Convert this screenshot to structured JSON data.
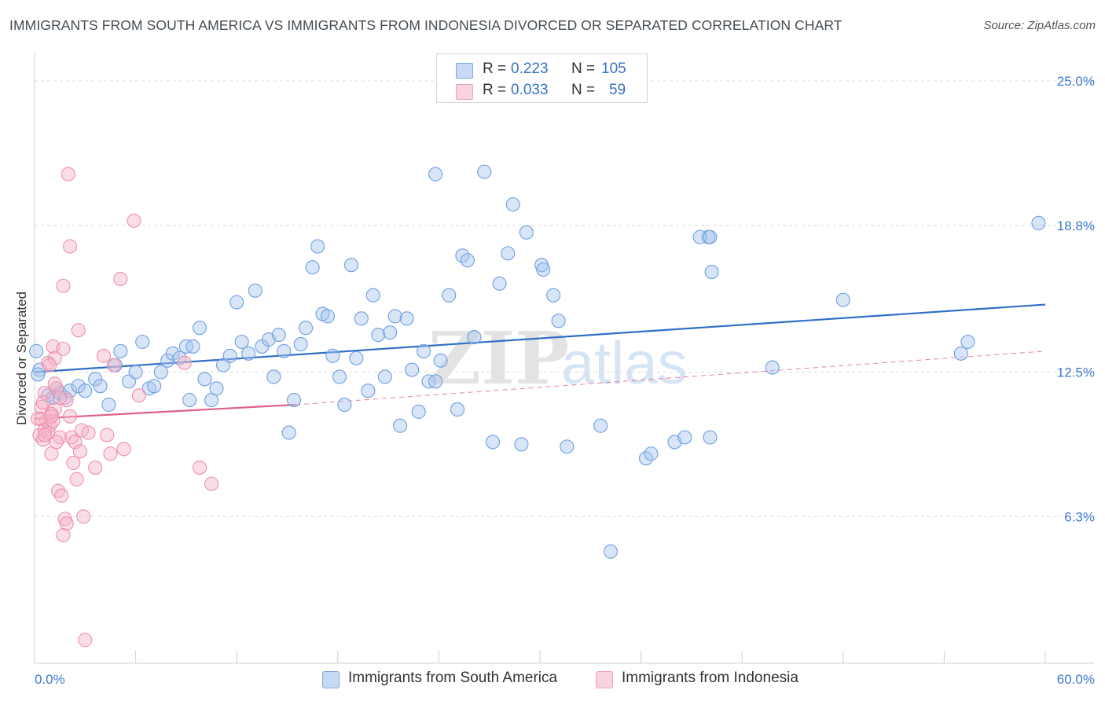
{
  "title": "IMMIGRANTS FROM SOUTH AMERICA VS IMMIGRANTS FROM INDONESIA DIVORCED OR SEPARATED CORRELATION CHART",
  "source": "Source: ZipAtlas.com",
  "legend_stats": [
    {
      "r_label": "R =",
      "r_value": "0.223",
      "n_label": "N =",
      "n_value": "105",
      "color": "#a9c6ee"
    },
    {
      "r_label": "R =",
      "r_value": "0.033",
      "n_label": "N =",
      "n_value": "59",
      "color": "#f5b5c8"
    }
  ],
  "watermark": "ZIPatlas",
  "chart_data": {
    "type": "scatter",
    "xlabel": "",
    "ylabel": "Divorced or Separated",
    "xlim": [
      0,
      60
    ],
    "ylim": [
      0,
      26.25
    ],
    "x_tick_labels": [
      "0.0%",
      "60.0%"
    ],
    "y_ticks": [
      6.3,
      12.5,
      18.8,
      25.0
    ],
    "y_tick_labels": [
      "6.3%",
      "12.5%",
      "18.8%",
      "25.0%"
    ],
    "grid": true,
    "legend_position": "bottom-center",
    "series": [
      {
        "name": "Immigrants from South America",
        "color": "#6f9fe0",
        "fill": "#a9c6ee",
        "trend": {
          "x": [
            0,
            60
          ],
          "y": [
            12.5,
            15.4
          ],
          "color": "#2f6fc8"
        },
        "points": [
          [
            0.1,
            13.4
          ],
          [
            0.3,
            12.6
          ],
          [
            0.8,
            11.5
          ],
          [
            1.1,
            11.4
          ],
          [
            1.3,
            11.8
          ],
          [
            1.5,
            11.6
          ],
          [
            1.8,
            11.4
          ],
          [
            2.1,
            11.7
          ],
          [
            2.6,
            11.9
          ],
          [
            3.0,
            11.7
          ],
          [
            3.6,
            12.2
          ],
          [
            3.9,
            11.9
          ],
          [
            4.4,
            11.1
          ],
          [
            4.8,
            12.8
          ],
          [
            5.1,
            13.4
          ],
          [
            5.6,
            12.1
          ],
          [
            6.0,
            12.5
          ],
          [
            6.4,
            13.8
          ],
          [
            6.8,
            11.8
          ],
          [
            7.1,
            11.9
          ],
          [
            7.5,
            12.5
          ],
          [
            7.9,
            13.0
          ],
          [
            8.2,
            13.3
          ],
          [
            8.6,
            13.1
          ],
          [
            9.0,
            13.6
          ],
          [
            9.2,
            11.3
          ],
          [
            9.4,
            13.6
          ],
          [
            9.8,
            14.4
          ],
          [
            10.1,
            12.2
          ],
          [
            10.5,
            11.3
          ],
          [
            10.8,
            11.8
          ],
          [
            11.2,
            12.8
          ],
          [
            11.6,
            13.2
          ],
          [
            12.0,
            15.5
          ],
          [
            12.3,
            13.8
          ],
          [
            12.7,
            13.3
          ],
          [
            13.1,
            16.0
          ],
          [
            13.5,
            13.6
          ],
          [
            13.9,
            13.9
          ],
          [
            14.2,
            12.3
          ],
          [
            14.5,
            14.1
          ],
          [
            14.8,
            13.4
          ],
          [
            15.1,
            9.9
          ],
          [
            15.4,
            11.3
          ],
          [
            15.8,
            13.7
          ],
          [
            16.1,
            14.4
          ],
          [
            16.5,
            17.0
          ],
          [
            16.8,
            17.9
          ],
          [
            17.1,
            15.0
          ],
          [
            17.4,
            14.9
          ],
          [
            17.7,
            13.2
          ],
          [
            18.1,
            12.3
          ],
          [
            18.4,
            11.1
          ],
          [
            18.8,
            17.1
          ],
          [
            19.1,
            13.1
          ],
          [
            19.4,
            14.8
          ],
          [
            19.8,
            11.7
          ],
          [
            20.1,
            15.8
          ],
          [
            20.4,
            14.1
          ],
          [
            20.8,
            12.3
          ],
          [
            21.1,
            14.2
          ],
          [
            21.4,
            14.9
          ],
          [
            21.7,
            10.2
          ],
          [
            22.1,
            14.8
          ],
          [
            22.4,
            12.6
          ],
          [
            22.8,
            10.8
          ],
          [
            23.1,
            13.4
          ],
          [
            23.4,
            12.1
          ],
          [
            23.8,
            12.1
          ],
          [
            24.1,
            13.0
          ],
          [
            24.6,
            15.8
          ],
          [
            25.1,
            10.9
          ],
          [
            25.4,
            17.5
          ],
          [
            25.7,
            17.3
          ],
          [
            26.1,
            14.0
          ],
          [
            27.2,
            9.5
          ],
          [
            27.6,
            16.3
          ],
          [
            28.1,
            17.6
          ],
          [
            28.4,
            19.7
          ],
          [
            28.9,
            9.4
          ],
          [
            29.2,
            18.5
          ],
          [
            30.1,
            17.1
          ],
          [
            30.2,
            16.9
          ],
          [
            30.8,
            15.8
          ],
          [
            31.1,
            14.7
          ],
          [
            31.6,
            9.3
          ],
          [
            23.8,
            21.0
          ],
          [
            26.7,
            21.1
          ],
          [
            33.6,
            10.2
          ],
          [
            34.2,
            4.8
          ],
          [
            36.3,
            8.8
          ],
          [
            36.6,
            9.0
          ],
          [
            38.0,
            9.5
          ],
          [
            38.6,
            9.7
          ],
          [
            40.0,
            18.3
          ],
          [
            39.5,
            18.3
          ],
          [
            40.1,
            18.3
          ],
          [
            40.1,
            9.7
          ],
          [
            40.2,
            16.8
          ],
          [
            43.8,
            12.7
          ],
          [
            48.0,
            15.6
          ],
          [
            55.0,
            13.3
          ],
          [
            55.4,
            13.8
          ],
          [
            59.6,
            18.9
          ],
          [
            0.2,
            12.4
          ]
        ]
      },
      {
        "name": "Immigrants from Indonesia",
        "color": "#ee8fae",
        "fill": "#f5b5c8",
        "trend": {
          "x": [
            0,
            15.5
          ],
          "y": [
            10.5,
            11.1
          ],
          "color": "#e05f8c",
          "dashed_x": [
            15.5,
            60
          ],
          "dashed_y": [
            11.1,
            13.4
          ]
        },
        "points": [
          [
            0.2,
            10.5
          ],
          [
            0.3,
            9.8
          ],
          [
            0.4,
            11.0
          ],
          [
            0.5,
            9.6
          ],
          [
            0.6,
            11.6
          ],
          [
            0.7,
            10.4
          ],
          [
            0.8,
            12.9
          ],
          [
            0.9,
            10.2
          ],
          [
            1.0,
            9.0
          ],
          [
            1.1,
            13.6
          ],
          [
            1.2,
            10.9
          ],
          [
            1.3,
            11.8
          ],
          [
            1.4,
            7.4
          ],
          [
            1.5,
            9.7
          ],
          [
            1.6,
            7.2
          ],
          [
            1.7,
            13.5
          ],
          [
            1.8,
            6.2
          ],
          [
            1.9,
            11.3
          ],
          [
            2.0,
            21.0
          ],
          [
            2.1,
            10.6
          ],
          [
            2.2,
            9.7
          ],
          [
            2.3,
            8.6
          ],
          [
            2.4,
            9.5
          ],
          [
            2.5,
            7.9
          ],
          [
            2.6,
            14.3
          ],
          [
            2.7,
            9.1
          ],
          [
            2.8,
            10.0
          ],
          [
            2.9,
            6.3
          ],
          [
            3.0,
            1.0
          ],
          [
            3.2,
            9.9
          ],
          [
            3.6,
            8.4
          ],
          [
            4.1,
            13.2
          ],
          [
            4.3,
            9.8
          ],
          [
            4.5,
            9.0
          ],
          [
            4.7,
            12.8
          ],
          [
            5.1,
            16.5
          ],
          [
            5.3,
            9.2
          ],
          [
            5.9,
            19.0
          ],
          [
            6.2,
            11.5
          ],
          [
            8.9,
            12.9
          ],
          [
            9.8,
            8.4
          ],
          [
            10.5,
            7.7
          ],
          [
            0.4,
            10.5
          ],
          [
            0.5,
            11.2
          ],
          [
            0.6,
            10.0
          ],
          [
            0.8,
            9.9
          ],
          [
            1.0,
            10.7
          ],
          [
            1.1,
            10.4
          ],
          [
            1.2,
            13.1
          ],
          [
            1.3,
            9.5
          ],
          [
            1.5,
            11.4
          ],
          [
            1.7,
            5.5
          ],
          [
            1.7,
            16.2
          ],
          [
            1.9,
            6.0
          ],
          [
            2.1,
            17.9
          ],
          [
            0.9,
            12.8
          ],
          [
            0.6,
            9.8
          ],
          [
            1.0,
            10.6
          ],
          [
            1.2,
            12.0
          ]
        ]
      }
    ]
  }
}
